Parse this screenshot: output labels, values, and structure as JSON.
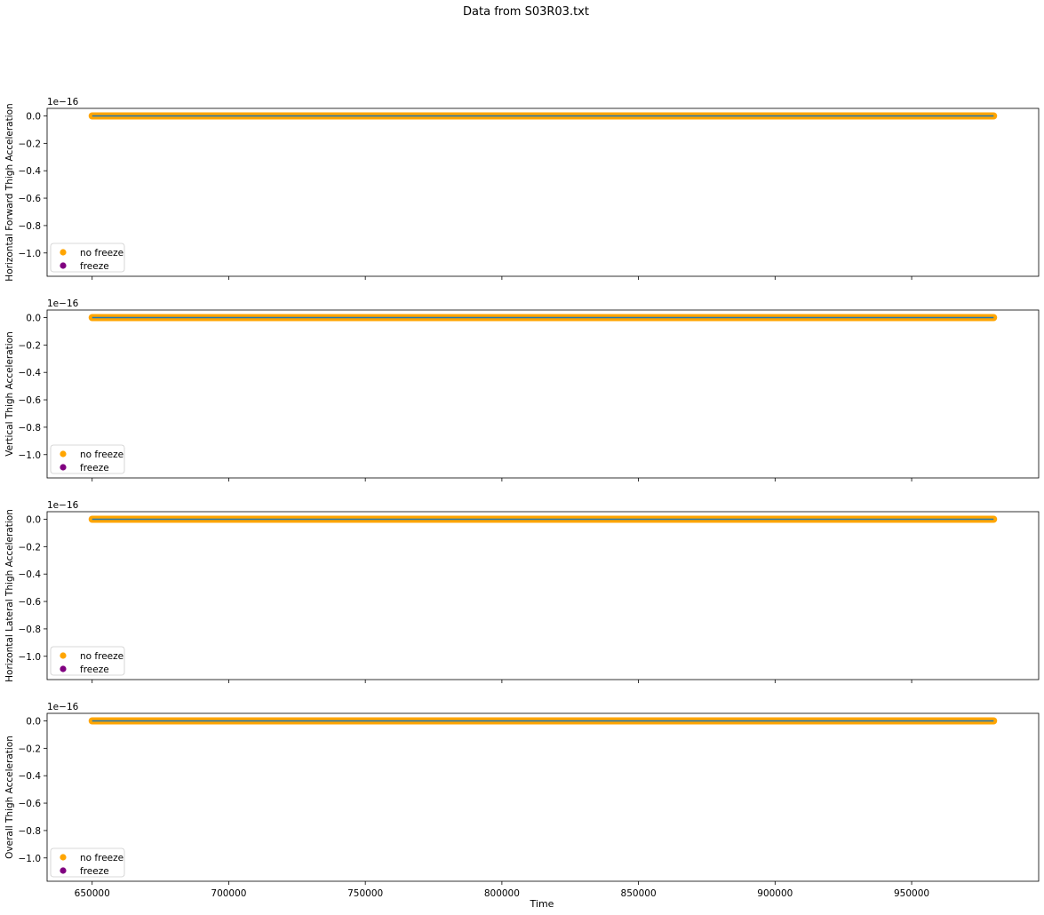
{
  "figure": {
    "title": "Data from S03R03.txt",
    "xlabel": "Time"
  },
  "chart_data": [
    {
      "type": "scatter",
      "ylabel": "Horizontal Forward Thigh Acceleration",
      "offset_label": "1e−16",
      "xlim": [
        633500,
        996500
      ],
      "ylim": [
        -1.17,
        0.055
      ],
      "x_range": [
        650000,
        980000
      ],
      "series": [
        {
          "name": "no freeze",
          "color": "#FFA500",
          "y": 0.0
        },
        {
          "name": "freeze",
          "color": "#800080",
          "y": null
        }
      ],
      "line_color": "#1f77b4",
      "legend": "lower-left"
    },
    {
      "type": "scatter",
      "ylabel": "Vertical Thigh Acceleration",
      "offset_label": "1e−16",
      "xlim": [
        633500,
        996500
      ],
      "ylim": [
        -1.17,
        0.055
      ],
      "x_range": [
        650000,
        980000
      ],
      "series": [
        {
          "name": "no freeze",
          "color": "#FFA500",
          "y": 0.0
        },
        {
          "name": "freeze",
          "color": "#800080",
          "y": null
        }
      ],
      "line_color": "#1f77b4",
      "legend": "lower-left"
    },
    {
      "type": "scatter",
      "ylabel": "Horizontal Lateral Thigh Acceleration",
      "offset_label": "1e−16",
      "xlim": [
        633500,
        996500
      ],
      "ylim": [
        -1.17,
        0.055
      ],
      "x_range": [
        650000,
        980000
      ],
      "series": [
        {
          "name": "no freeze",
          "color": "#FFA500",
          "y": 0.0
        },
        {
          "name": "freeze",
          "color": "#800080",
          "y": null
        }
      ],
      "line_color": "#1f77b4",
      "legend": "lower-left"
    },
    {
      "type": "scatter",
      "ylabel": "Overall Thigh Acceleration",
      "offset_label": "1e−16",
      "xlim": [
        633500,
        996500
      ],
      "ylim": [
        -1.17,
        0.055
      ],
      "x_range": [
        650000,
        980000
      ],
      "series": [
        {
          "name": "no freeze",
          "color": "#FFA500",
          "y": 0.0
        },
        {
          "name": "freeze",
          "color": "#800080",
          "y": null
        }
      ],
      "line_color": "#1f77b4",
      "legend": "lower-left"
    }
  ],
  "axes": {
    "yticks": [
      "0.0",
      "−0.2",
      "−0.4",
      "−0.6",
      "−0.8",
      "−1.0"
    ],
    "ytick_values": [
      0.0,
      -0.2,
      -0.4,
      -0.6,
      -0.8,
      -1.0
    ],
    "xticks": [
      "650000",
      "700000",
      "750000",
      "800000",
      "850000",
      "900000",
      "950000"
    ],
    "xtick_values": [
      650000,
      700000,
      750000,
      800000,
      850000,
      900000,
      950000
    ]
  }
}
